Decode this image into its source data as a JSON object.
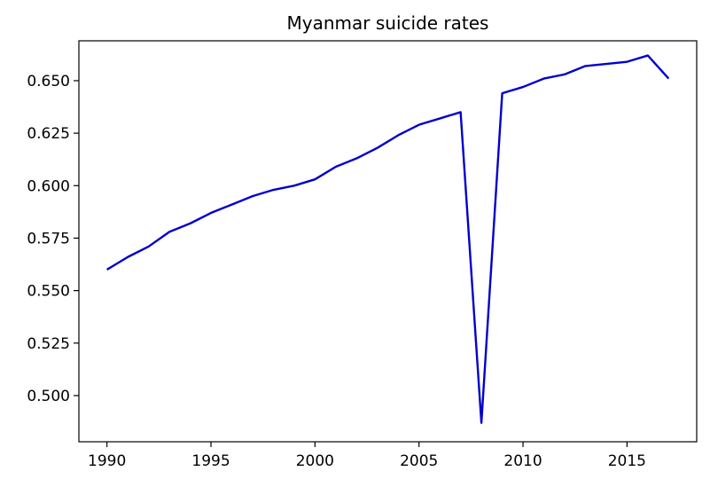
{
  "chart_data": {
    "type": "line",
    "title": "Myanmar suicide rates",
    "xlabel": "",
    "ylabel": "",
    "x": [
      1990,
      1991,
      1992,
      1993,
      1994,
      1995,
      1996,
      1997,
      1998,
      1999,
      2000,
      2001,
      2002,
      2003,
      2004,
      2005,
      2006,
      2007,
      2008,
      2009,
      2010,
      2011,
      2012,
      2013,
      2014,
      2015,
      2016,
      2017
    ],
    "series": [
      {
        "name": "",
        "color": "#0000cc",
        "values": [
          0.56,
          0.566,
          0.571,
          0.578,
          0.582,
          0.587,
          0.591,
          0.595,
          0.598,
          0.6,
          0.603,
          0.609,
          0.613,
          0.618,
          0.624,
          0.629,
          0.632,
          0.635,
          0.487,
          0.644,
          0.647,
          0.651,
          0.653,
          0.657,
          0.658,
          0.659,
          0.662,
          0.651
        ]
      }
    ],
    "xlim": [
      1988.65,
      2018.35
    ],
    "ylim": [
      0.478,
      0.669
    ],
    "xticks": [
      1990,
      1995,
      2000,
      2005,
      2010,
      2015
    ],
    "xtick_labels": [
      "1990",
      "1995",
      "2000",
      "2005",
      "2010",
      "2015"
    ],
    "yticks": [
      0.5,
      0.525,
      0.55,
      0.575,
      0.6,
      0.625,
      0.65
    ],
    "ytick_labels": [
      "0.500",
      "0.525",
      "0.550",
      "0.575",
      "0.600",
      "0.625",
      "0.650"
    ],
    "grid": false,
    "legend": "none"
  }
}
